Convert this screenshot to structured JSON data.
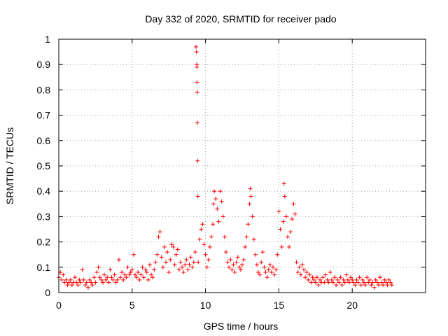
{
  "chart_data": {
    "type": "scatter",
    "title": "Day 332 of 2020, SRMTID for receiver pado",
    "xlabel": "GPS time / hours",
    "ylabel": "SRMTID / TECUs",
    "xlim": [
      0,
      25
    ],
    "ylim": [
      0,
      1
    ],
    "xticks": [
      0,
      5,
      10,
      15,
      20
    ],
    "yticks": [
      0,
      0.1,
      0.2,
      0.3,
      0.4,
      0.5,
      0.6,
      0.7,
      0.8,
      0.9,
      1
    ],
    "xtick_labels": [
      "0",
      "5",
      "10",
      "15",
      "20"
    ],
    "ytick_labels": [
      "0",
      "0.1",
      "0.2",
      "0.3",
      "0.4",
      "0.5",
      "0.6",
      "0.7",
      "0.8",
      "0.9",
      "1"
    ],
    "grid": true,
    "marker": "+",
    "color": "#ff0000",
    "series": [
      {
        "name": "SRMTID",
        "points": [
          [
            0.0,
            0.06
          ],
          [
            0.1,
            0.08
          ],
          [
            0.2,
            0.05
          ],
          [
            0.3,
            0.07
          ],
          [
            0.4,
            0.04
          ],
          [
            0.5,
            0.05
          ],
          [
            0.6,
            0.03
          ],
          [
            0.7,
            0.04
          ],
          [
            0.8,
            0.05
          ],
          [
            0.9,
            0.03
          ],
          [
            1.0,
            0.04
          ],
          [
            1.1,
            0.06
          ],
          [
            1.2,
            0.04
          ],
          [
            1.3,
            0.03
          ],
          [
            1.4,
            0.05
          ],
          [
            1.5,
            0.04
          ],
          [
            1.6,
            0.09
          ],
          [
            1.7,
            0.05
          ],
          [
            1.8,
            0.03
          ],
          [
            1.9,
            0.04
          ],
          [
            2.0,
            0.02
          ],
          [
            2.1,
            0.05
          ],
          [
            2.2,
            0.04
          ],
          [
            2.3,
            0.03
          ],
          [
            2.4,
            0.06
          ],
          [
            2.5,
            0.04
          ],
          [
            2.6,
            0.08
          ],
          [
            2.7,
            0.1
          ],
          [
            2.8,
            0.06
          ],
          [
            2.9,
            0.05
          ],
          [
            3.0,
            0.04
          ],
          [
            3.1,
            0.07
          ],
          [
            3.2,
            0.05
          ],
          [
            3.3,
            0.06
          ],
          [
            3.4,
            0.04
          ],
          [
            3.5,
            0.09
          ],
          [
            3.6,
            0.06
          ],
          [
            3.7,
            0.05
          ],
          [
            3.8,
            0.07
          ],
          [
            3.9,
            0.04
          ],
          [
            4.0,
            0.05
          ],
          [
            4.1,
            0.13
          ],
          [
            4.2,
            0.06
          ],
          [
            4.3,
            0.08
          ],
          [
            4.4,
            0.05
          ],
          [
            4.5,
            0.07
          ],
          [
            4.6,
            0.06
          ],
          [
            4.7,
            0.1
          ],
          [
            4.8,
            0.07
          ],
          [
            4.9,
            0.08
          ],
          [
            5.0,
            0.09
          ],
          [
            5.1,
            0.15
          ],
          [
            5.2,
            0.07
          ],
          [
            5.3,
            0.06
          ],
          [
            5.4,
            0.08
          ],
          [
            5.5,
            0.05
          ],
          [
            5.6,
            0.07
          ],
          [
            5.7,
            0.1
          ],
          [
            5.8,
            0.06
          ],
          [
            5.9,
            0.09
          ],
          [
            6.0,
            0.08
          ],
          [
            6.1,
            0.05
          ],
          [
            6.2,
            0.11
          ],
          [
            6.3,
            0.07
          ],
          [
            6.4,
            0.06
          ],
          [
            6.5,
            0.09
          ],
          [
            6.6,
            0.12
          ],
          [
            6.7,
            0.15
          ],
          [
            6.8,
            0.22
          ],
          [
            6.9,
            0.24
          ],
          [
            7.0,
            0.14
          ],
          [
            7.1,
            0.1
          ],
          [
            7.2,
            0.18
          ],
          [
            7.3,
            0.12
          ],
          [
            7.4,
            0.16
          ],
          [
            7.5,
            0.08
          ],
          [
            7.6,
            0.13
          ],
          [
            7.7,
            0.19
          ],
          [
            7.8,
            0.18
          ],
          [
            7.9,
            0.11
          ],
          [
            8.0,
            0.15
          ],
          [
            8.1,
            0.17
          ],
          [
            8.2,
            0.09
          ],
          [
            8.3,
            0.12
          ],
          [
            8.4,
            0.1
          ],
          [
            8.5,
            0.08
          ],
          [
            8.6,
            0.11
          ],
          [
            8.7,
            0.13
          ],
          [
            8.8,
            0.09
          ],
          [
            8.9,
            0.11
          ],
          [
            9.0,
            0.14
          ],
          [
            9.1,
            0.1
          ],
          [
            9.2,
            0.12
          ],
          [
            9.3,
            0.16
          ],
          [
            9.35,
            0.97
          ],
          [
            9.38,
            0.95
          ],
          [
            9.4,
            0.9
          ],
          [
            9.41,
            0.89
          ],
          [
            9.42,
            0.83
          ],
          [
            9.44,
            0.79
          ],
          [
            9.45,
            0.67
          ],
          [
            9.46,
            0.52
          ],
          [
            9.48,
            0.38
          ],
          [
            9.5,
            0.12
          ],
          [
            9.6,
            0.21
          ],
          [
            9.7,
            0.25
          ],
          [
            9.8,
            0.27
          ],
          [
            9.9,
            0.19
          ],
          [
            10.0,
            0.15
          ],
          [
            10.1,
            0.1
          ],
          [
            10.2,
            0.13
          ],
          [
            10.3,
            0.18
          ],
          [
            10.4,
            0.22
          ],
          [
            10.5,
            0.27
          ],
          [
            10.55,
            0.35
          ],
          [
            10.6,
            0.4
          ],
          [
            10.7,
            0.37
          ],
          [
            10.8,
            0.33
          ],
          [
            10.9,
            0.28
          ],
          [
            11.0,
            0.4
          ],
          [
            11.1,
            0.36
          ],
          [
            11.2,
            0.3
          ],
          [
            11.3,
            0.22
          ],
          [
            11.4,
            0.16
          ],
          [
            11.5,
            0.12
          ],
          [
            11.6,
            0.1
          ],
          [
            11.7,
            0.13
          ],
          [
            11.8,
            0.09
          ],
          [
            11.9,
            0.11
          ],
          [
            12.0,
            0.08
          ],
          [
            12.1,
            0.12
          ],
          [
            12.2,
            0.14
          ],
          [
            12.3,
            0.1
          ],
          [
            12.4,
            0.09
          ],
          [
            12.5,
            0.11
          ],
          [
            12.6,
            0.13
          ],
          [
            12.7,
            0.18
          ],
          [
            12.8,
            0.22
          ],
          [
            12.9,
            0.27
          ],
          [
            13.0,
            0.35
          ],
          [
            13.05,
            0.41
          ],
          [
            13.1,
            0.38
          ],
          [
            13.2,
            0.3
          ],
          [
            13.3,
            0.21
          ],
          [
            13.4,
            0.15
          ],
          [
            13.5,
            0.11
          ],
          [
            13.6,
            0.08
          ],
          [
            13.7,
            0.07
          ],
          [
            13.8,
            0.12
          ],
          [
            13.9,
            0.16
          ],
          [
            14.0,
            0.1
          ],
          [
            14.1,
            0.08
          ],
          [
            14.2,
            0.06
          ],
          [
            14.3,
            0.09
          ],
          [
            14.4,
            0.11
          ],
          [
            14.5,
            0.08
          ],
          [
            14.6,
            0.1
          ],
          [
            14.7,
            0.07
          ],
          [
            14.8,
            0.09
          ],
          [
            14.9,
            0.15
          ],
          [
            15.0,
            0.32
          ],
          [
            15.1,
            0.25
          ],
          [
            15.2,
            0.18
          ],
          [
            15.3,
            0.28
          ],
          [
            15.35,
            0.43
          ],
          [
            15.4,
            0.38
          ],
          [
            15.5,
            0.3
          ],
          [
            15.6,
            0.22
          ],
          [
            15.7,
            0.18
          ],
          [
            15.8,
            0.24
          ],
          [
            15.9,
            0.29
          ],
          [
            16.0,
            0.35
          ],
          [
            16.1,
            0.31
          ],
          [
            16.2,
            0.12
          ],
          [
            16.3,
            0.08
          ],
          [
            16.4,
            0.1
          ],
          [
            16.5,
            0.07
          ],
          [
            16.6,
            0.11
          ],
          [
            16.7,
            0.09
          ],
          [
            16.8,
            0.06
          ],
          [
            16.9,
            0.08
          ],
          [
            17.0,
            0.05
          ],
          [
            17.1,
            0.07
          ],
          [
            17.2,
            0.04
          ],
          [
            17.3,
            0.06
          ],
          [
            17.4,
            0.05
          ],
          [
            17.5,
            0.04
          ],
          [
            17.6,
            0.06
          ],
          [
            17.7,
            0.03
          ],
          [
            17.8,
            0.05
          ],
          [
            17.9,
            0.04
          ],
          [
            18.0,
            0.06
          ],
          [
            18.1,
            0.04
          ],
          [
            18.2,
            0.07
          ],
          [
            18.3,
            0.05
          ],
          [
            18.4,
            0.04
          ],
          [
            18.5,
            0.08
          ],
          [
            18.6,
            0.05
          ],
          [
            18.7,
            0.04
          ],
          [
            18.8,
            0.06
          ],
          [
            18.9,
            0.03
          ],
          [
            19.0,
            0.05
          ],
          [
            19.1,
            0.04
          ],
          [
            19.2,
            0.06
          ],
          [
            19.3,
            0.03
          ],
          [
            19.4,
            0.05
          ],
          [
            19.5,
            0.04
          ],
          [
            19.6,
            0.07
          ],
          [
            19.7,
            0.05
          ],
          [
            19.8,
            0.04
          ],
          [
            19.9,
            0.06
          ],
          [
            20.0,
            0.05
          ],
          [
            20.1,
            0.04
          ],
          [
            20.2,
            0.03
          ],
          [
            20.3,
            0.05
          ],
          [
            20.4,
            0.04
          ],
          [
            20.5,
            0.06
          ],
          [
            20.6,
            0.03
          ],
          [
            20.7,
            0.05
          ],
          [
            20.8,
            0.04
          ],
          [
            20.9,
            0.03
          ],
          [
            21.0,
            0.06
          ],
          [
            21.1,
            0.04
          ],
          [
            21.2,
            0.05
          ],
          [
            21.3,
            0.03
          ],
          [
            21.4,
            0.04
          ],
          [
            21.5,
            0.02
          ],
          [
            21.6,
            0.05
          ],
          [
            21.7,
            0.04
          ],
          [
            21.8,
            0.03
          ],
          [
            21.9,
            0.06
          ],
          [
            22.0,
            0.04
          ],
          [
            22.1,
            0.03
          ],
          [
            22.2,
            0.05
          ],
          [
            22.3,
            0.04
          ],
          [
            22.4,
            0.03
          ],
          [
            22.5,
            0.05
          ],
          [
            22.6,
            0.04
          ],
          [
            22.7,
            0.03
          ]
        ]
      }
    ]
  }
}
